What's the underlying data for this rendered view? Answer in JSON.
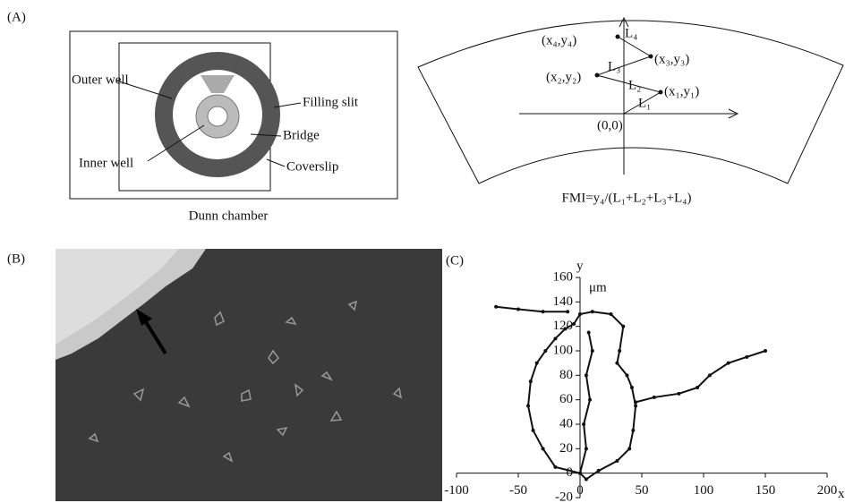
{
  "panel_a": {
    "label": "(A)",
    "chamber": {
      "outer_well": "Outer well",
      "filling_slit": "Filling slit",
      "bridge": "Bridge",
      "inner_well": "Inner well",
      "coverslip": "Coverslip",
      "caption": "Dunn chamber"
    },
    "fmi": {
      "points": [
        "(x₁,y₁)",
        "(x₂,y₂)",
        "(x₃,y₃)",
        "(x₄,y₄)"
      ],
      "segments": [
        "L₁",
        "L₂",
        "L₃",
        "L₄"
      ],
      "origin": "(0,0)",
      "formula": "FMI=y₄/(L₁+L₂+L₃+L₄)"
    }
  },
  "panel_b": {
    "label": "(B)"
  },
  "chart_data": {
    "type": "line",
    "label": "(C)",
    "x_label": "x",
    "y_label": "y",
    "unit": "μm",
    "xlim": [
      -100,
      200
    ],
    "ylim": [
      -20,
      160
    ],
    "xticks": [
      -100,
      -50,
      0,
      50,
      100,
      150,
      200
    ],
    "yticks": [
      -20,
      0,
      20,
      40,
      60,
      80,
      100,
      120,
      140,
      160
    ],
    "series": [
      {
        "color": "#111111",
        "x": [
          0,
          -20,
          -30,
          -38,
          -42,
          -40,
          -35,
          -28,
          -20,
          -12,
          -5,
          0,
          10,
          25,
          35,
          32,
          30,
          38,
          42,
          45,
          43,
          40,
          30,
          15,
          5,
          0
        ],
        "y": [
          0,
          5,
          20,
          35,
          55,
          75,
          90,
          100,
          110,
          118,
          122,
          130,
          132,
          130,
          120,
          100,
          90,
          80,
          70,
          55,
          35,
          20,
          10,
          2,
          -5,
          0
        ]
      },
      {
        "color": "#111111",
        "x": [
          -10,
          -30,
          -50,
          -68
        ],
        "y": [
          132,
          132,
          134,
          136
        ]
      },
      {
        "color": "#111111",
        "x": [
          45,
          60,
          80,
          95,
          105,
          120,
          135,
          150
        ],
        "y": [
          58,
          62,
          65,
          70,
          80,
          90,
          95,
          100
        ]
      },
      {
        "color": "#111111",
        "x": [
          0,
          5,
          3,
          8,
          5,
          10,
          7
        ],
        "y": [
          0,
          20,
          40,
          60,
          80,
          100,
          115
        ]
      }
    ]
  }
}
